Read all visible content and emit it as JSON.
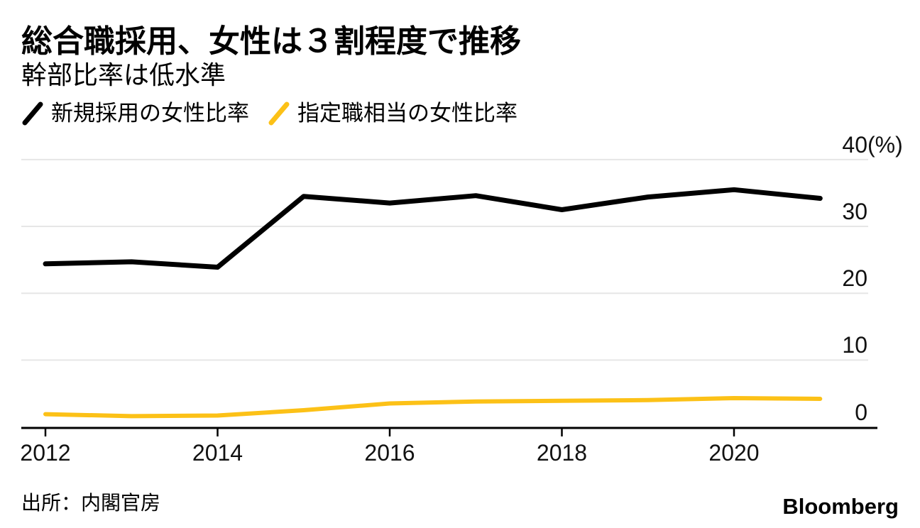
{
  "header": {
    "title": "総合職採用、女性は３割程度で推移",
    "subtitle": "幹部比率は低水準"
  },
  "footer": {
    "source": "出所：内閣官房",
    "brand": "Bloomberg"
  },
  "colors": {
    "series_black": "#000000",
    "series_yellow": "#fcc117",
    "gridline": "#e6e6e6",
    "axis": "#000000",
    "text": "#000000"
  },
  "chart_data": {
    "type": "line",
    "title": "総合職採用、女性は３割程度で推移",
    "subtitle": "幹部比率は低水準",
    "x": [
      2012,
      2013,
      2014,
      2015,
      2016,
      2017,
      2018,
      2019,
      2020,
      2021
    ],
    "series": [
      {
        "name": "新規採用の女性比率",
        "color": "#000000",
        "values": [
          24.4,
          24.7,
          23.9,
          34.5,
          33.5,
          34.6,
          32.5,
          34.4,
          35.5,
          34.2
        ]
      },
      {
        "name": "指定職相当の女性比率",
        "color": "#fcc117",
        "values": [
          1.9,
          1.6,
          1.7,
          2.5,
          3.5,
          3.8,
          3.9,
          4.0,
          4.3,
          4.2
        ]
      }
    ],
    "ylim": [
      0,
      40
    ],
    "y_ticks": [
      40,
      30,
      20,
      10,
      0
    ],
    "y_unit": "(%)",
    "x_ticks": [
      2012,
      2014,
      2016,
      2018,
      2020
    ],
    "grid": "horizontal",
    "legend_position": "top",
    "ylabel": "",
    "xlabel": ""
  }
}
